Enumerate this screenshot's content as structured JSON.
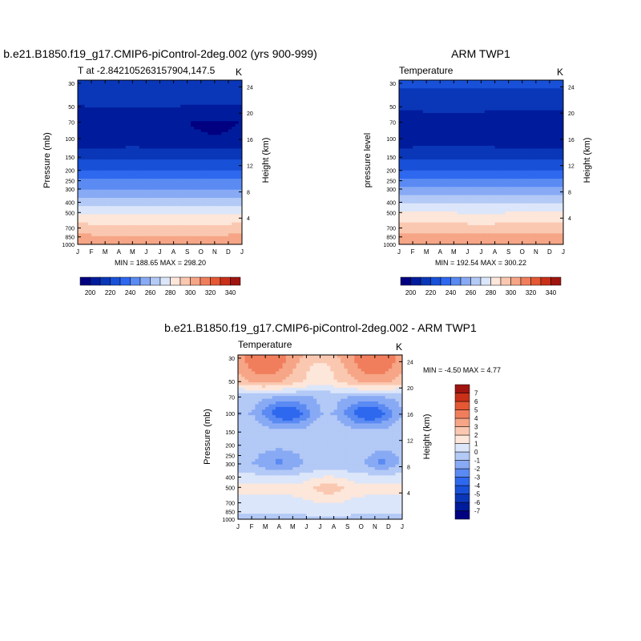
{
  "panels": [
    {
      "title": "b.e21.B1850.f19_g17.CMIP6-piControl-2deg.002 (yrs 900-999)",
      "subtitle_left": "T at -2.842105263157904,147.5",
      "unit": "K",
      "ylabel_left": "Pressure (mb)",
      "ylabel_right": "Height (km)",
      "minmax": "MIN = 188.65 MAX = 298.20",
      "has_colorbar": true
    },
    {
      "title": "ARM TWP1",
      "subtitle_left": "Temperature",
      "unit": "K",
      "ylabel_left": "pressure level",
      "ylabel_right": "Height (km)",
      "minmax": "MIN = 192.54 MAX = 300.22",
      "has_colorbar": true
    },
    {
      "title": "b.e21.B1850.f19_g17.CMIP6-piControl-2deg.002 - ARM TWP1",
      "subtitle_left": "Temperature",
      "unit": "K",
      "ylabel_left": "Pressure (mb)",
      "ylabel_right": "Height (km)",
      "minmax": "MIN =  -4.50 MAX =   4.77",
      "has_colorbar": false
    }
  ],
  "chart_data": [
    {
      "type": "heatmap",
      "title": "b.e21.B1850.f19_g17.CMIP6-piControl-2deg.002 (yrs 900-999)",
      "subtitle": "T at -2.842105263157904,147.5",
      "unit": "K",
      "x": [
        "J",
        "F",
        "M",
        "A",
        "M",
        "J",
        "J",
        "A",
        "S",
        "O",
        "N",
        "D",
        "J"
      ],
      "y_pressure_mb": [
        1000,
        850,
        700,
        500,
        400,
        300,
        250,
        200,
        150,
        100,
        70,
        50,
        30
      ],
      "y_height_km_ticks": [
        4,
        8,
        12,
        16,
        20,
        24
      ],
      "ylabel": "Pressure (mb)",
      "ylabel_right": "Height (km)",
      "min": 188.65,
      "max": 298.2,
      "profile_K": [
        298,
        291,
        283,
        268,
        256,
        240,
        231,
        220,
        207,
        192,
        191,
        200,
        208
      ],
      "colorbar": {
        "levels": [
          190,
          200,
          210,
          220,
          230,
          240,
          250,
          260,
          270,
          280,
          290,
          300,
          310,
          320,
          330,
          340,
          350
        ],
        "tick_labels": [
          "200",
          "220",
          "240",
          "260",
          "280",
          "300",
          "320",
          "340"
        ]
      }
    },
    {
      "type": "heatmap",
      "title": "ARM TWP1",
      "subtitle": "Temperature",
      "unit": "K",
      "x": [
        "J",
        "F",
        "M",
        "A",
        "M",
        "J",
        "J",
        "A",
        "S",
        "O",
        "N",
        "D",
        "J"
      ],
      "y_pressure_mb": [
        1000,
        850,
        700,
        500,
        400,
        300,
        250,
        200,
        150,
        100,
        70,
        50,
        30
      ],
      "y_height_km_ticks": [
        4,
        8,
        12,
        16,
        20,
        24
      ],
      "ylabel": "pressure level",
      "ylabel_right": "Height (km)",
      "min": 192.54,
      "max": 300.22,
      "profile_K": [
        300,
        293,
        285,
        270,
        258,
        242,
        233,
        221,
        207,
        194,
        192,
        203,
        212
      ],
      "colorbar": {
        "levels": [
          190,
          200,
          210,
          220,
          230,
          240,
          250,
          260,
          270,
          280,
          290,
          300,
          310,
          320,
          330,
          340,
          350
        ],
        "tick_labels": [
          "200",
          "220",
          "240",
          "260",
          "280",
          "300",
          "320",
          "340"
        ]
      }
    },
    {
      "type": "heatmap",
      "title": "b.e21.B1850.f19_g17.CMIP6-piControl-2deg.002 - ARM TWP1",
      "subtitle": "Temperature",
      "unit": "K",
      "x": [
        "J",
        "F",
        "M",
        "A",
        "M",
        "J",
        "J",
        "A",
        "S",
        "O",
        "N",
        "D",
        "J"
      ],
      "y_pressure_mb": [
        1000,
        850,
        700,
        500,
        400,
        300,
        250,
        200,
        150,
        100,
        70,
        50,
        30
      ],
      "y_height_km_ticks": [
        4,
        8,
        12,
        16,
        20,
        24
      ],
      "ylabel": "Pressure (mb)",
      "ylabel_right": "Height (km)",
      "min": -4.5,
      "max": 4.77,
      "profile_K": [
        -1.5,
        -0.6,
        -0.3,
        0.3,
        -0.6,
        -1.8,
        -1.6,
        -1.2,
        -1.4,
        -3.5,
        -2.0,
        1.5,
        2.6
      ],
      "colorbar": {
        "levels": [
          -8,
          -7,
          -6,
          -5,
          -4,
          -3,
          -2,
          -1,
          0,
          1,
          2,
          3,
          4,
          5,
          6,
          7,
          8
        ],
        "tick_labels": [
          "-7",
          "-6",
          "-5",
          "-4",
          "-3",
          "-2",
          "-1",
          "0",
          "1",
          "2",
          "3",
          "4",
          "5",
          "6",
          "7"
        ]
      }
    }
  ],
  "palettes": {
    "temperature": [
      "#000080",
      "#001c9c",
      "#0a37b8",
      "#1850d8",
      "#2e68ee",
      "#5a8af2",
      "#88aaf4",
      "#b3c9f6",
      "#dce6fa",
      "#fde6da",
      "#fac8b0",
      "#f6a586",
      "#f07e5c",
      "#e45834",
      "#c83018",
      "#a01410",
      "#7a0000"
    ],
    "difference": [
      "#000080",
      "#001c9c",
      "#0a37b8",
      "#1850d8",
      "#2e68ee",
      "#5a8af2",
      "#88aaf4",
      "#b3c9f6",
      "#dce6fa",
      "#fde6da",
      "#fac8b0",
      "#f6a586",
      "#f07e5c",
      "#e45834",
      "#c83018",
      "#a01410",
      "#7a0000"
    ]
  }
}
